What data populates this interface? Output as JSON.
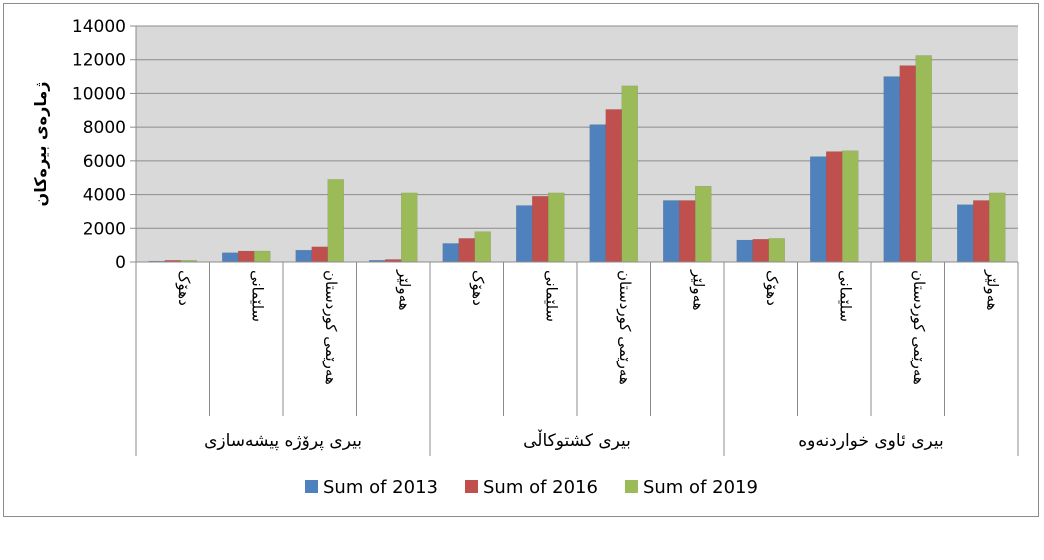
{
  "chart_data": {
    "type": "bar",
    "ylabel": "ژمارەی بیرەکان",
    "ylim": [
      0,
      14000
    ],
    "yticks": [
      0,
      2000,
      4000,
      6000,
      8000,
      10000,
      12000,
      14000
    ],
    "grid": true,
    "legend_position": "bottom",
    "groups": [
      {
        "label": "بیری پرۆژە پیشەسازی",
        "categories": [
          "دهۆک",
          "سلێمانی",
          "هەرێمی کوردستان",
          "هەولێر"
        ]
      },
      {
        "label": "بیری کشتوکاڵی",
        "categories": [
          "دهۆک",
          "سلێمانی",
          "هەرێمی کوردستان",
          "هەولێر"
        ]
      },
      {
        "label": "بیری ئاوی خواردنەوە",
        "categories": [
          "دهۆک",
          "سلێمانی",
          "هەرێمی کوردستان",
          "هەولێر"
        ]
      }
    ],
    "series": [
      {
        "name": "Sum of 2013",
        "color": "#4F81BD",
        "values": [
          50,
          550,
          700,
          100,
          1100,
          3350,
          8150,
          3650,
          1300,
          6250,
          11000,
          3400
        ]
      },
      {
        "name": "Sum of 2016",
        "color": "#C0504D",
        "values": [
          100,
          650,
          900,
          150,
          1400,
          3900,
          9050,
          3650,
          1350,
          6550,
          11650,
          3650
        ]
      },
      {
        "name": "Sum of 2019",
        "color": "#9BBB59",
        "values": [
          100,
          650,
          4900,
          4100,
          1800,
          4100,
          10450,
          4500,
          1400,
          6600,
          12250,
          4100
        ]
      }
    ]
  }
}
